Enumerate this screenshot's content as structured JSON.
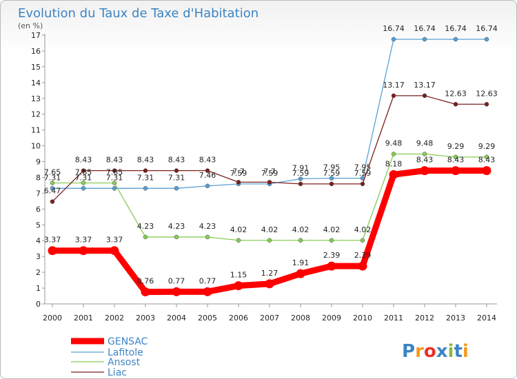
{
  "chart_data": {
    "type": "line",
    "title": "Evolution du Taux de Taxe d'Habitation",
    "subtitle": "(en %)",
    "xlabel": "",
    "ylabel": "",
    "ylim": [
      0,
      17
    ],
    "grid": false,
    "categories": [
      "2000",
      "2001",
      "2002",
      "2003",
      "2004",
      "2005",
      "2006",
      "2007",
      "2008",
      "2009",
      "2010",
      "2011",
      "2012",
      "2013",
      "2014"
    ],
    "y_ticks": [
      "0",
      "1",
      "2",
      "3",
      "4",
      "5",
      "6",
      "7",
      "8",
      "9",
      "10",
      "11",
      "12",
      "13",
      "14",
      "15",
      "16",
      "17"
    ],
    "series": [
      {
        "name": "GENSAC",
        "color": "#ff0000",
        "values": [
          3.37,
          3.37,
          3.37,
          0.76,
          0.77,
          0.77,
          1.15,
          1.27,
          1.91,
          2.39,
          2.39,
          8.18,
          8.43,
          8.43,
          8.43
        ],
        "labels": [
          "3.37",
          "3.37",
          "3.37",
          "0.76",
          "0.77",
          "0.77",
          "1.15",
          "1.27",
          "1.91",
          "2.39",
          "2.39",
          "8.18",
          "8.43",
          "8.43",
          "8.43"
        ]
      },
      {
        "name": "Lafitole",
        "color": "#5a9fd4",
        "values": [
          7.31,
          7.31,
          7.31,
          7.31,
          7.31,
          7.46,
          7.59,
          7.59,
          7.91,
          7.95,
          7.95,
          16.74,
          16.74,
          16.74,
          16.74
        ],
        "labels": [
          "7.31",
          "7.31",
          "7.31",
          "7.31",
          "7.31",
          "7.46",
          "7.59",
          "7.59",
          "7.91",
          "7.95",
          "7.95",
          "16.74",
          "16.74",
          "16.74",
          "16.74"
        ]
      },
      {
        "name": "Ansost",
        "color": "#88cc55",
        "values": [
          7.65,
          7.65,
          7.65,
          4.23,
          4.23,
          4.23,
          4.02,
          4.02,
          4.02,
          4.02,
          4.02,
          9.48,
          9.48,
          9.29,
          9.29
        ],
        "labels": [
          "7.65",
          "7.65",
          "7.65",
          "4.23",
          "4.23",
          "4.23",
          "4.02",
          "4.02",
          "4.02",
          "4.02",
          "4.02",
          "9.48",
          "9.48",
          "9.29",
          "9.29"
        ]
      },
      {
        "name": "Liac",
        "color": "#7a1f1f",
        "values": [
          6.47,
          8.43,
          8.43,
          8.43,
          8.43,
          8.43,
          7.7,
          7.7,
          7.59,
          7.59,
          7.59,
          13.17,
          13.17,
          12.63,
          12.63
        ],
        "labels": [
          "6.47",
          "8.43",
          "8.43",
          "8.43",
          "8.43",
          "8.43",
          "7.7",
          "7.7",
          "7.59",
          "7.59",
          "7.59",
          "13.17",
          "13.17",
          "12.63",
          "12.63"
        ]
      }
    ]
  },
  "legend": {
    "placement": "bottom-left",
    "items": [
      "GENSAC",
      "Lafitole",
      "Ansost",
      "Liac"
    ]
  },
  "logo": {
    "text": "Proxiti",
    "colors": [
      "#3c84c4",
      "#f39a1e",
      "#e8332b",
      "#3c84c4",
      "#88b83c",
      "#3c84c4",
      "#f39a1e"
    ]
  }
}
